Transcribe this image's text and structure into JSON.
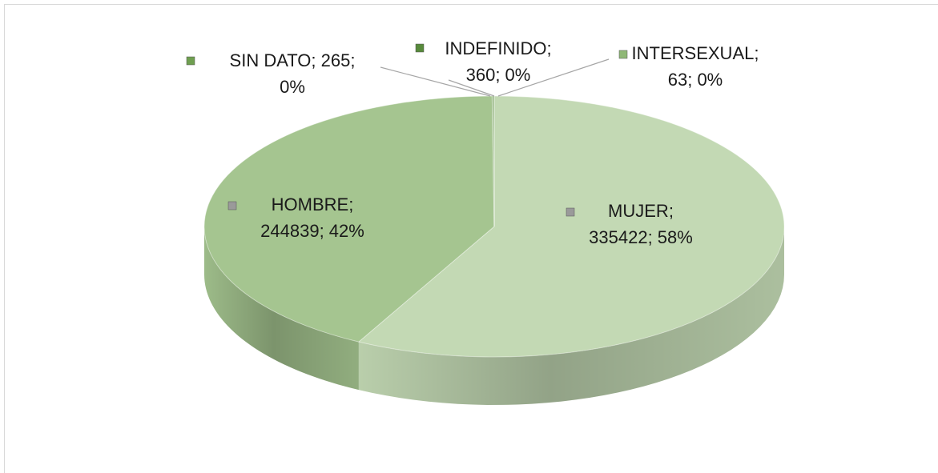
{
  "chart_data": {
    "type": "pie",
    "values": [
      335422,
      244839,
      265,
      360,
      63
    ],
    "value_labels": [
      [
        "MUJER;",
        "335422; 58%"
      ],
      [
        "HOMBRE;",
        "244839; 42%"
      ],
      [
        "SIN DATO; 265;",
        "0%"
      ],
      [
        "INDEFINIDO;",
        "360; 0%"
      ],
      [
        "INTERSEXUAL;",
        "63; 0%"
      ]
    ],
    "colors": [
      "#c3d9b4",
      "#a5c590",
      "#6f9f50",
      "#578a3b",
      "#8fb876"
    ]
  }
}
